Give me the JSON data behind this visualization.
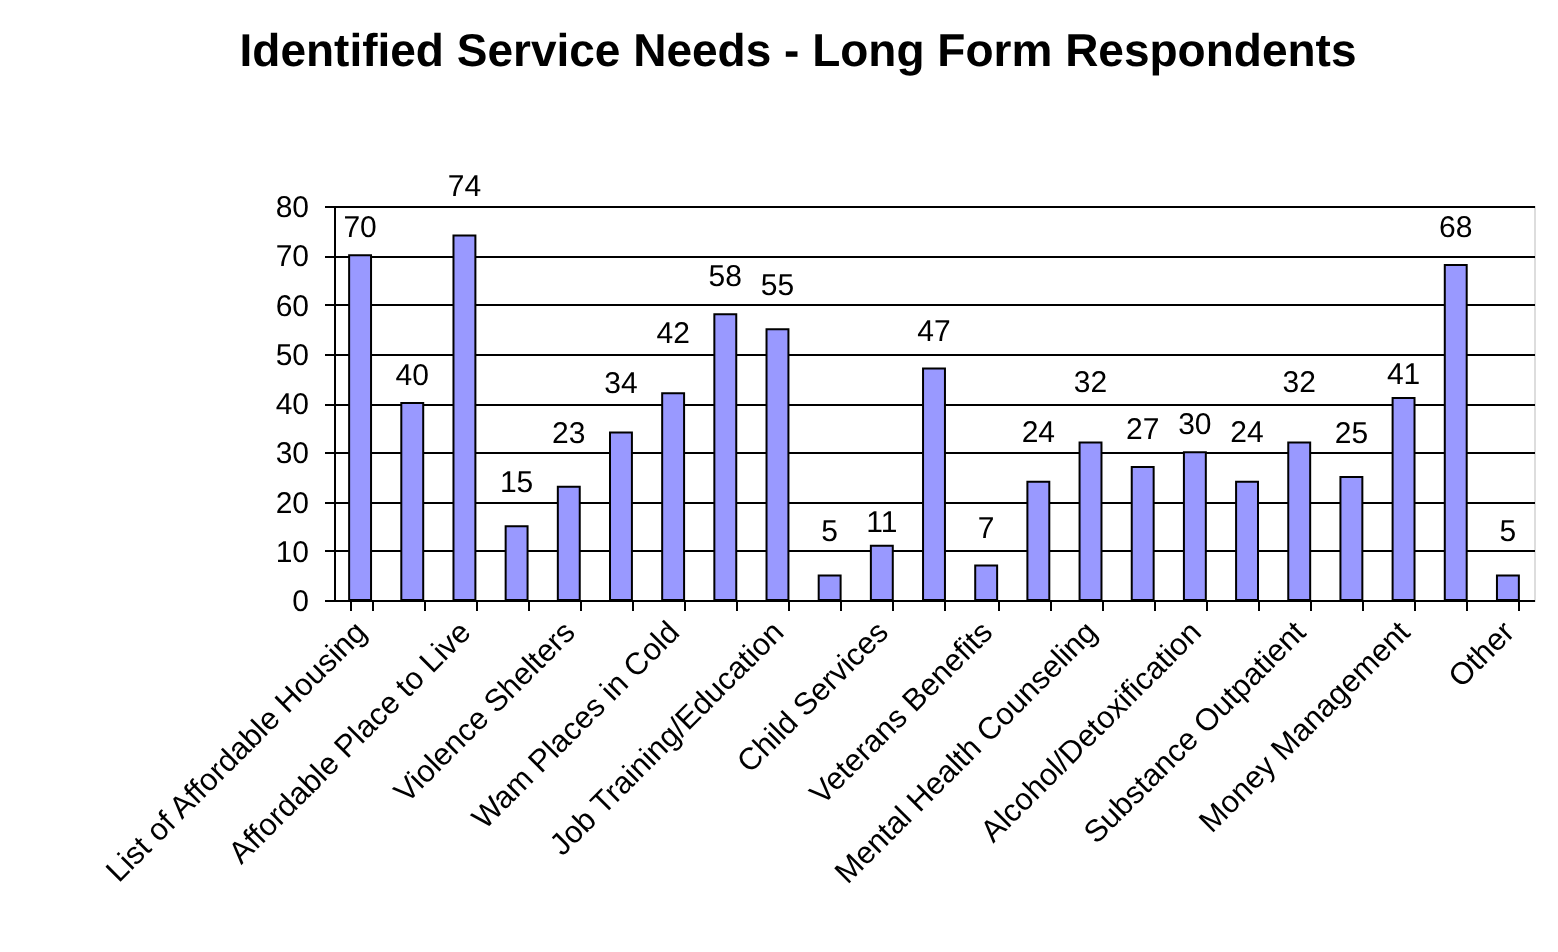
{
  "chart_data": {
    "type": "bar",
    "title": "Identified Service Needs - Long Form Respondents",
    "categories": [
      "List of Affordable Housing",
      null,
      "Affordable Place to Live",
      null,
      "Violence Shelters",
      null,
      "Wam Places in Cold",
      null,
      "Job Training/Education",
      null,
      "Child Services",
      null,
      "Veterans Benefits",
      null,
      "Mental Health Counseling",
      null,
      "Alcohol/Detoxification",
      null,
      "Substance Outpatient",
      null,
      "Money Management",
      null,
      "Other"
    ],
    "values": [
      70,
      40,
      74,
      15,
      23,
      34,
      42,
      58,
      55,
      5,
      11,
      47,
      7,
      24,
      32,
      27,
      30,
      24,
      32,
      25,
      41,
      68,
      5
    ],
    "color": "#9999ff",
    "ylim": [
      0,
      80
    ],
    "yticks": [
      0,
      10,
      20,
      30,
      40,
      50,
      60,
      70,
      80
    ],
    "grid": "y",
    "data_labels": true
  }
}
